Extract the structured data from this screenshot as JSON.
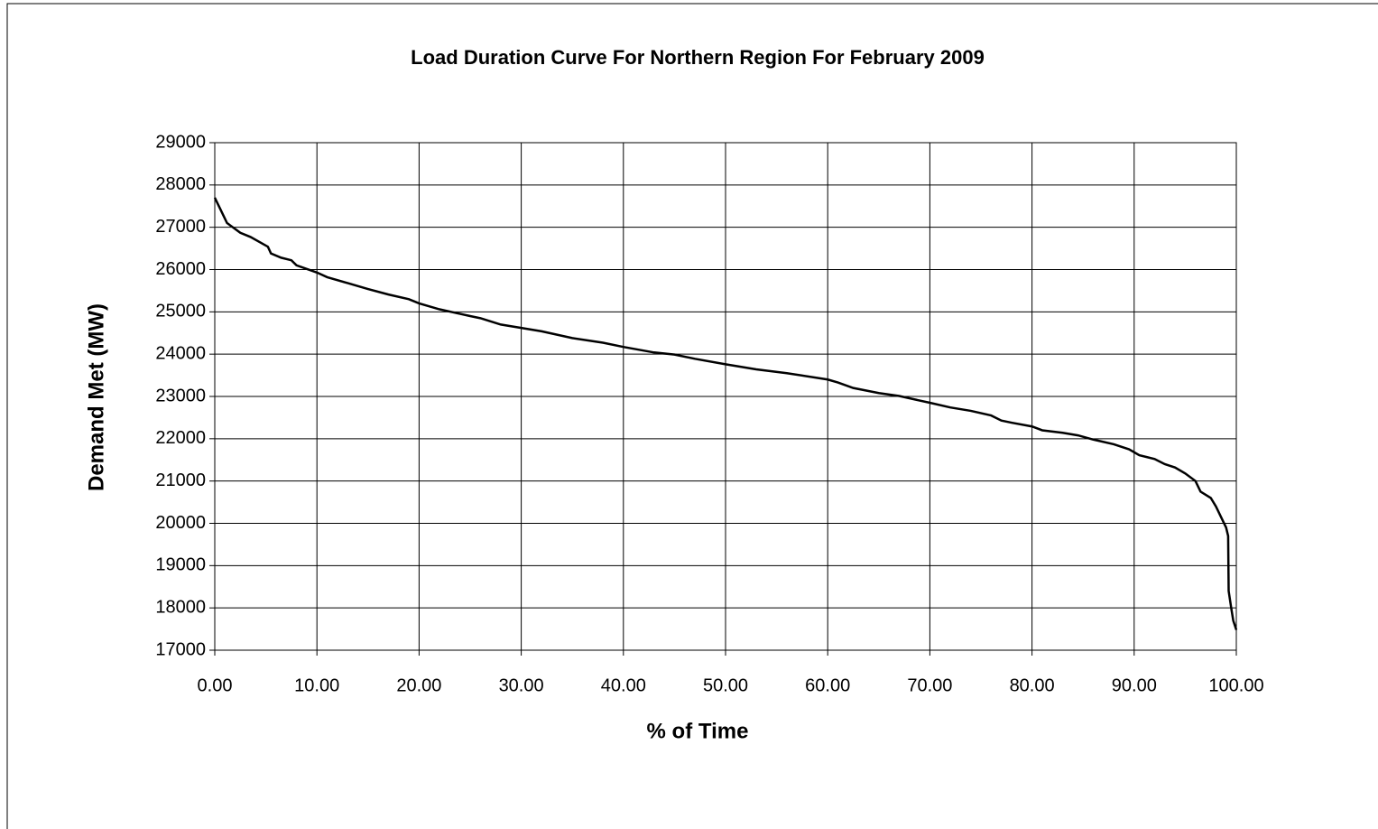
{
  "chart_data": {
    "type": "line",
    "title": "Load Duration Curve For Northern Region For February 2009",
    "x_label": "% of Time",
    "y_label": "Demand Met (MW)",
    "x": [
      0,
      0.5,
      0.9,
      1.2,
      2.5,
      3.5,
      5.2,
      5.5,
      6.5,
      7.5,
      8,
      10,
      11,
      13,
      15,
      17,
      19,
      20,
      22,
      25,
      26,
      28,
      30,
      32,
      35,
      38,
      40,
      43,
      45,
      47,
      50,
      53,
      56,
      60,
      61,
      62.5,
      65,
      67,
      70,
      72,
      74,
      76,
      77,
      78,
      80,
      81,
      83,
      84.5,
      86,
      88,
      89.5,
      90.5,
      92,
      93,
      94,
      95,
      96,
      96.5,
      97.5,
      98,
      98.5,
      99,
      99.2,
      99.25,
      99.5,
      99.7,
      100
    ],
    "series": [
      {
        "name": "Demand Met",
        "color": "#000000",
        "values": [
          27700,
          27450,
          27250,
          27100,
          26870,
          26770,
          26540,
          26380,
          26280,
          26220,
          26100,
          25930,
          25820,
          25680,
          25540,
          25410,
          25300,
          25200,
          25060,
          24900,
          24850,
          24700,
          24620,
          24540,
          24380,
          24270,
          24170,
          24040,
          23990,
          23890,
          23760,
          23640,
          23550,
          23400,
          23330,
          23200,
          23080,
          23010,
          22850,
          22740,
          22660,
          22550,
          22430,
          22380,
          22290,
          22200,
          22140,
          22080,
          21980,
          21870,
          21750,
          21610,
          21520,
          21400,
          21320,
          21180,
          21000,
          20750,
          20600,
          20400,
          20150,
          19900,
          19700,
          18400,
          18000,
          17700,
          17480
        ]
      }
    ],
    "xlim": [
      0,
      100
    ],
    "xticks": [
      {
        "value": 0,
        "label": "0.00"
      },
      {
        "value": 10,
        "label": "10.00"
      },
      {
        "value": 20,
        "label": "20.00"
      },
      {
        "value": 30,
        "label": "30.00"
      },
      {
        "value": 40,
        "label": "40.00"
      },
      {
        "value": 50,
        "label": "50.00"
      },
      {
        "value": 60,
        "label": "60.00"
      },
      {
        "value": 70,
        "label": "70.00"
      },
      {
        "value": 80,
        "label": "80.00"
      },
      {
        "value": 90,
        "label": "90.00"
      },
      {
        "value": 100,
        "label": "100.00"
      }
    ],
    "ylim": [
      17000,
      29000
    ],
    "yticks": [
      17000,
      18000,
      19000,
      20000,
      21000,
      22000,
      23000,
      24000,
      25000,
      26000,
      27000,
      28000,
      29000
    ],
    "grid": true
  }
}
